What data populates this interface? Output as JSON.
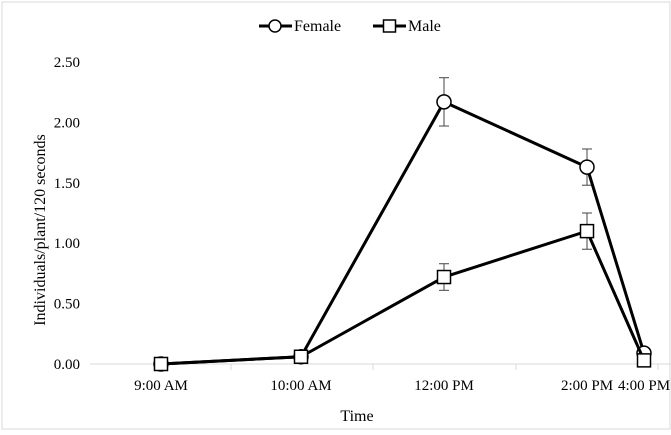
{
  "chart_data": {
    "type": "line",
    "title": "",
    "xlabel": "Time",
    "ylabel": "Individuals/plant/120 seconds",
    "categories": [
      "9:00 AM",
      "10:00 AM",
      "12:00 PM",
      "2:00 PM",
      "4:00 PM"
    ],
    "ylim": [
      0,
      2.5
    ],
    "yticks": [
      "0.00",
      "0.50",
      "1.00",
      "1.50",
      "2.00",
      "2.50"
    ],
    "grid": false,
    "legend_position": "top",
    "series": [
      {
        "name": "Female",
        "marker": "circle",
        "values": [
          0.0,
          0.06,
          2.17,
          1.63,
          0.09
        ],
        "error": [
          0,
          0,
          0.2,
          0.15,
          0
        ]
      },
      {
        "name": "Male",
        "marker": "square",
        "values": [
          0.0,
          0.06,
          0.72,
          1.1,
          0.03
        ],
        "error": [
          0,
          0,
          0.11,
          0.15,
          0
        ]
      }
    ],
    "colors": {
      "line": "#000000",
      "marker_fill": "#ffffff",
      "axis": "#d9d9d9",
      "frame": "#d9d9d9"
    }
  }
}
